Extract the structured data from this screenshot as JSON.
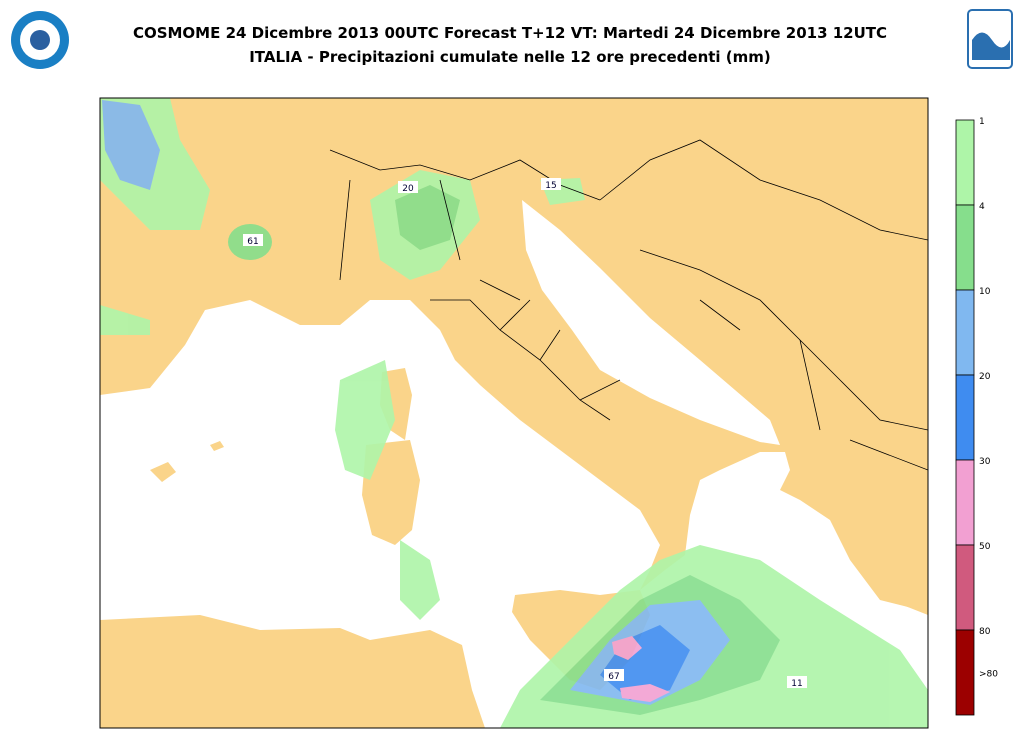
{
  "header": {
    "title": "COSMOME 24 Dicembre 2013 00UTC Forecast T+12 VT: Martedi 24 Dicembre 2013 12UTC",
    "subtitle": "ITALIA - Precipitazioni cumulate nelle 12 ore precedenti (mm)"
  },
  "legend": {
    "levels": [
      "1",
      "4",
      "10",
      "20",
      "30",
      "50",
      "80",
      ">80"
    ],
    "colors": [
      "#aef5a8",
      "#86de8c",
      "#80b8f0",
      "#3f8cf0",
      "#f2a0d2",
      "#d05a7e",
      "#9c0000"
    ]
  },
  "map_labels": [
    "61",
    "20",
    "15",
    "67",
    "11"
  ]
}
